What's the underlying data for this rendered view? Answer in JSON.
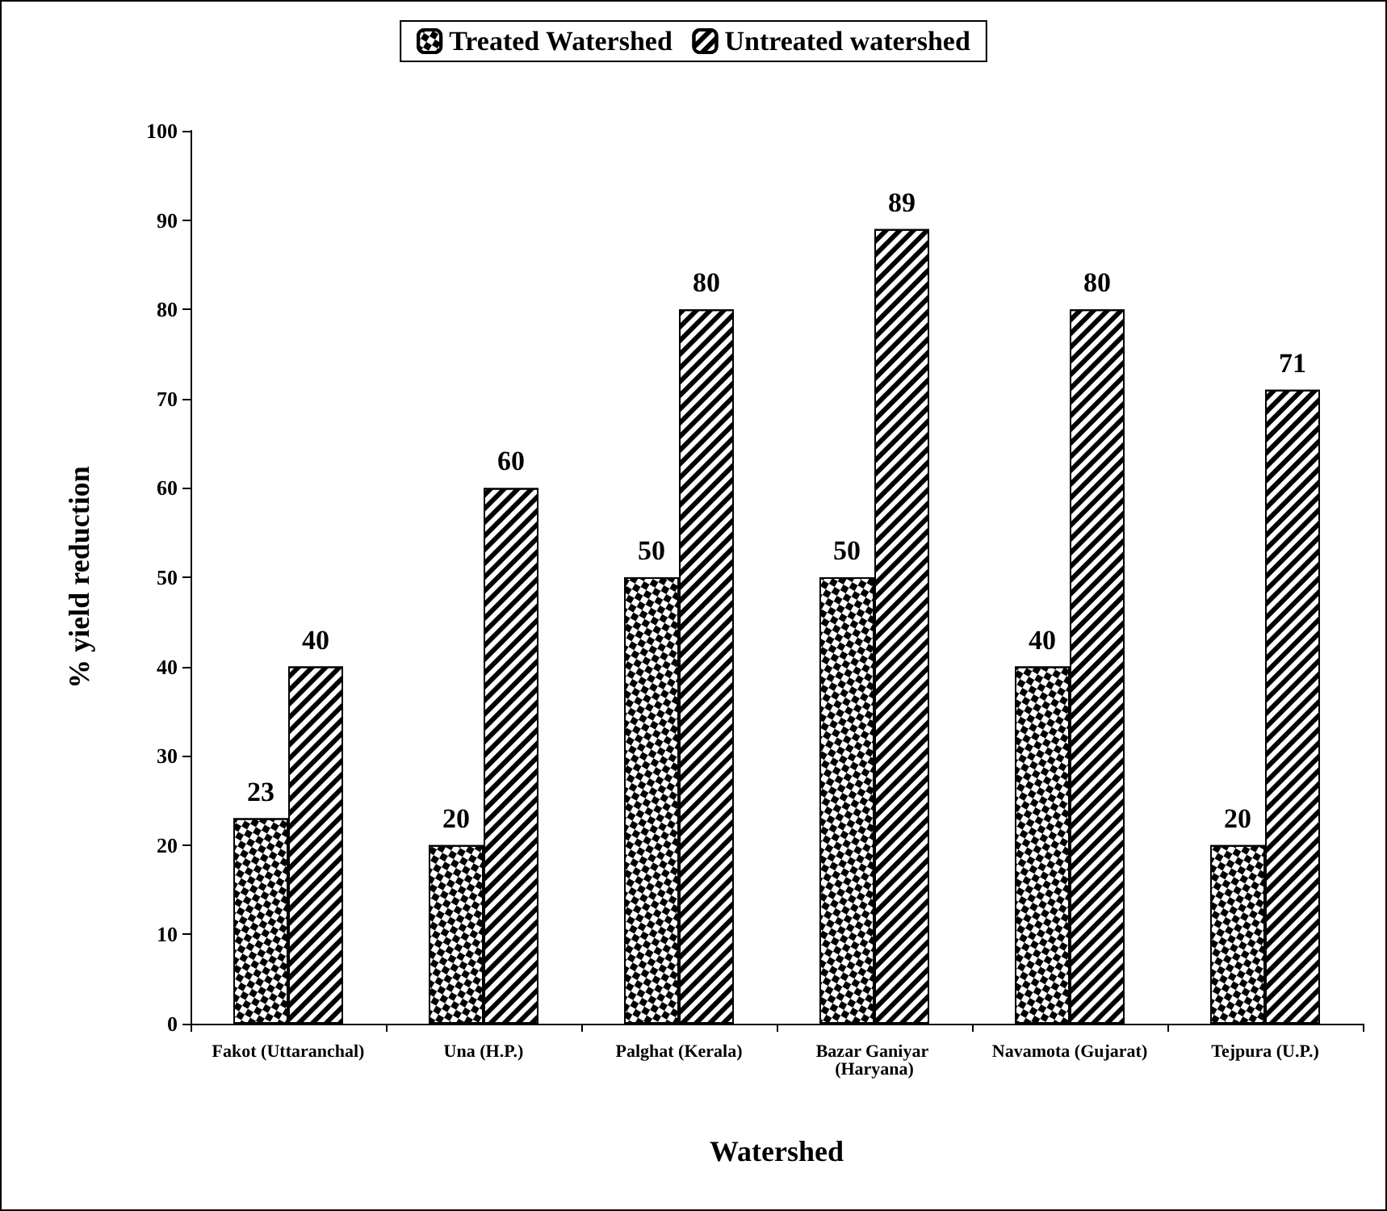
{
  "chart_data": {
    "type": "bar",
    "xlabel": "Watershed",
    "ylabel": "% yield reduction",
    "categories": [
      "Fakot (Uttaranchal)",
      "Una (H.P.)",
      "Palghat (Kerala)",
      "Bazar Ganiyar (Haryana)",
      "Navamota (Gujarat)",
      "Tejpura (U.P.)"
    ],
    "series": [
      {
        "name": "Treated Watershed",
        "color": "#000000",
        "values": [
          23,
          20,
          50,
          50,
          40,
          20
        ]
      },
      {
        "name": "Untreated watershed",
        "color": "#000000",
        "values": [
          40,
          60,
          80,
          89,
          80,
          71
        ]
      }
    ],
    "ylim": [
      0,
      100
    ],
    "yticks": [
      0,
      10,
      20,
      30,
      40,
      50,
      60,
      70,
      80,
      90,
      100
    ],
    "grid": false,
    "legend": "top",
    "data_labels": true
  }
}
